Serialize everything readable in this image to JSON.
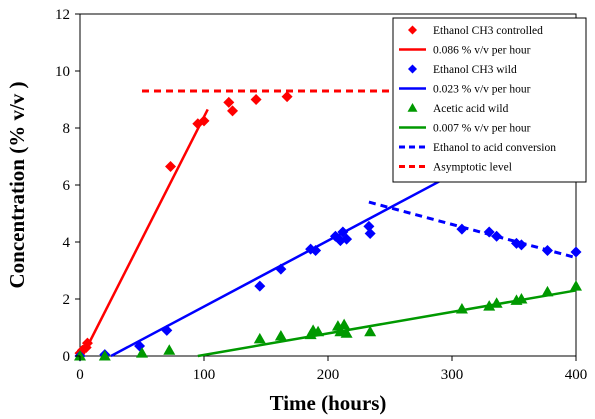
{
  "chart_data": {
    "type": "scatter",
    "xlabel": "Time (hours)",
    "ylabel": "Concentration (% v/v )",
    "xlim": [
      0,
      400
    ],
    "ylim": [
      0,
      12
    ],
    "x_ticks": [
      0,
      100,
      200,
      300,
      400
    ],
    "y_ticks": [
      0,
      2,
      4,
      6,
      8,
      10,
      12
    ],
    "grid": false,
    "legend_position": "top-right",
    "series": [
      {
        "name": "Ethanol CH3 controlled",
        "marker": "diamond",
        "color": "#ff0000",
        "points": [
          [
            0,
            0.1
          ],
          [
            2,
            0.2
          ],
          [
            5,
            0.3
          ],
          [
            6,
            0.45
          ],
          [
            73,
            6.65
          ],
          [
            95,
            8.15
          ],
          [
            100,
            8.25
          ],
          [
            120,
            8.9
          ],
          [
            123,
            8.6
          ],
          [
            142,
            9.0
          ],
          [
            167,
            9.1
          ]
        ]
      },
      {
        "name": "0.086 % v/v per hour",
        "kind": "line",
        "color": "#ff0000",
        "points": [
          [
            2,
            0.0
          ],
          [
            103,
            8.65
          ]
        ]
      },
      {
        "name": "Ethanol CH3 wild",
        "marker": "diamond",
        "color": "#0000ff",
        "points": [
          [
            0,
            0.0
          ],
          [
            20,
            0.05
          ],
          [
            48,
            0.35
          ],
          [
            70,
            0.9
          ],
          [
            145,
            2.45
          ],
          [
            162,
            3.05
          ],
          [
            186,
            3.75
          ],
          [
            190,
            3.7
          ],
          [
            206,
            4.2
          ],
          [
            210,
            4.05
          ],
          [
            212,
            4.35
          ],
          [
            215,
            4.1
          ],
          [
            233,
            4.55
          ],
          [
            234,
            4.3
          ],
          [
            308,
            4.45
          ],
          [
            330,
            4.35
          ],
          [
            336,
            4.2
          ],
          [
            352,
            3.95
          ],
          [
            356,
            3.9
          ],
          [
            377,
            3.7
          ],
          [
            400,
            3.65
          ]
        ]
      },
      {
        "name": "0.023 % v/v per hour",
        "kind": "line",
        "color": "#0000ff",
        "points": [
          [
            25,
            0.0
          ],
          [
            293,
            6.2
          ]
        ]
      },
      {
        "name": "Acetic acid wild",
        "marker": "triangle",
        "color": "#009900",
        "points": [
          [
            0,
            0.0
          ],
          [
            20,
            0.0
          ],
          [
            50,
            0.1
          ],
          [
            72,
            0.2
          ],
          [
            145,
            0.6
          ],
          [
            162,
            0.7
          ],
          [
            186,
            0.75
          ],
          [
            188,
            0.9
          ],
          [
            192,
            0.85
          ],
          [
            208,
            1.05
          ],
          [
            210,
            0.85
          ],
          [
            213,
            1.1
          ],
          [
            215,
            0.8
          ],
          [
            234,
            0.85
          ],
          [
            308,
            1.65
          ],
          [
            330,
            1.75
          ],
          [
            336,
            1.85
          ],
          [
            352,
            1.95
          ],
          [
            356,
            2.0
          ],
          [
            377,
            2.25
          ],
          [
            400,
            2.45
          ]
        ]
      },
      {
        "name": "0.007 % v/v per hour",
        "kind": "line",
        "color": "#009900",
        "points": [
          [
            95,
            0.0
          ],
          [
            400,
            2.3
          ]
        ]
      },
      {
        "name": "Ethanol to acid conversion",
        "kind": "dashed-line",
        "color": "#0000ff",
        "points": [
          [
            233,
            5.4
          ],
          [
            400,
            3.45
          ]
        ]
      },
      {
        "name": "Asymptotic level",
        "kind": "dashed-line",
        "color": "#ff0000",
        "points": [
          [
            50,
            9.3
          ],
          [
            250,
            9.3
          ]
        ]
      }
    ]
  }
}
